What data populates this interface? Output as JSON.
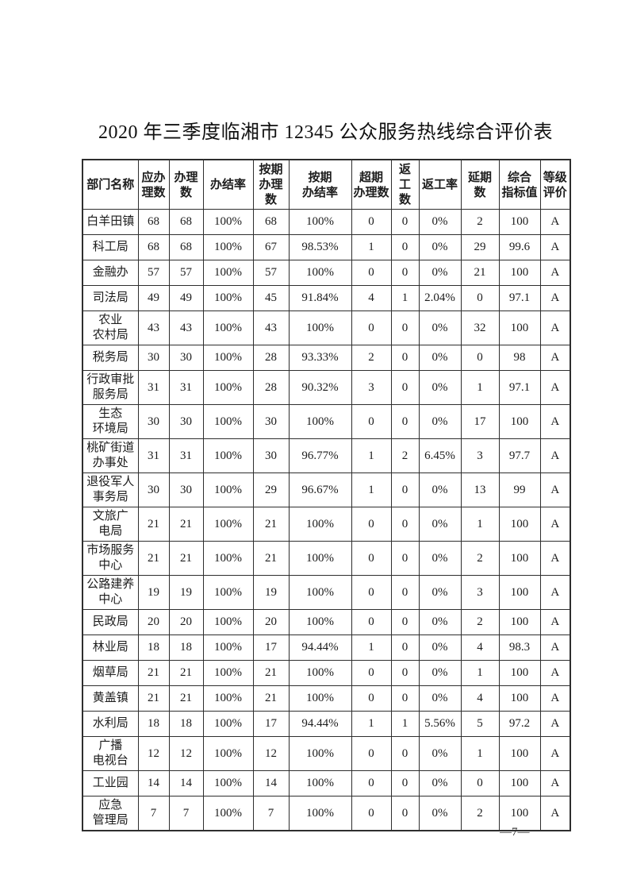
{
  "page": {
    "title": "2020 年三季度临湘市 12345 公众服务热线综合评价表",
    "page_number": "—7—"
  },
  "table": {
    "headers": [
      "部门名称",
      "应办\n理数",
      "办理数",
      "办结率",
      "按期\n办理\n数",
      "按期\n办结率",
      "超期\n办理数",
      "返\n工\n数",
      "返工率",
      "延期数",
      "综合\n指标值",
      "等级\n评价"
    ],
    "rows": [
      [
        "白羊田镇",
        "68",
        "68",
        "100%",
        "68",
        "100%",
        "0",
        "0",
        "0%",
        "2",
        "100",
        "A"
      ],
      [
        "科工局",
        "68",
        "68",
        "100%",
        "67",
        "98.53%",
        "1",
        "0",
        "0%",
        "29",
        "99.6",
        "A"
      ],
      [
        "金融办",
        "57",
        "57",
        "100%",
        "57",
        "100%",
        "0",
        "0",
        "0%",
        "21",
        "100",
        "A"
      ],
      [
        "司法局",
        "49",
        "49",
        "100%",
        "45",
        "91.84%",
        "4",
        "1",
        "2.04%",
        "0",
        "97.1",
        "A"
      ],
      [
        "农业\n农村局",
        "43",
        "43",
        "100%",
        "43",
        "100%",
        "0",
        "0",
        "0%",
        "32",
        "100",
        "A"
      ],
      [
        "税务局",
        "30",
        "30",
        "100%",
        "28",
        "93.33%",
        "2",
        "0",
        "0%",
        "0",
        "98",
        "A"
      ],
      [
        "行政审批\n服务局",
        "31",
        "31",
        "100%",
        "28",
        "90.32%",
        "3",
        "0",
        "0%",
        "1",
        "97.1",
        "A"
      ],
      [
        "生态\n环境局",
        "30",
        "30",
        "100%",
        "30",
        "100%",
        "0",
        "0",
        "0%",
        "17",
        "100",
        "A"
      ],
      [
        "桃矿街道\n办事处",
        "31",
        "31",
        "100%",
        "30",
        "96.77%",
        "1",
        "2",
        "6.45%",
        "3",
        "97.7",
        "A"
      ],
      [
        "退役军人\n事务局",
        "30",
        "30",
        "100%",
        "29",
        "96.67%",
        "1",
        "0",
        "0%",
        "13",
        "99",
        "A"
      ],
      [
        "文旅广\n电局",
        "21",
        "21",
        "100%",
        "21",
        "100%",
        "0",
        "0",
        "0%",
        "1",
        "100",
        "A"
      ],
      [
        "市场服务\n中心",
        "21",
        "21",
        "100%",
        "21",
        "100%",
        "0",
        "0",
        "0%",
        "2",
        "100",
        "A"
      ],
      [
        "公路建养\n中心",
        "19",
        "19",
        "100%",
        "19",
        "100%",
        "0",
        "0",
        "0%",
        "3",
        "100",
        "A"
      ],
      [
        "民政局",
        "20",
        "20",
        "100%",
        "20",
        "100%",
        "0",
        "0",
        "0%",
        "2",
        "100",
        "A"
      ],
      [
        "林业局",
        "18",
        "18",
        "100%",
        "17",
        "94.44%",
        "1",
        "0",
        "0%",
        "4",
        "98.3",
        "A"
      ],
      [
        "烟草局",
        "21",
        "21",
        "100%",
        "21",
        "100%",
        "0",
        "0",
        "0%",
        "1",
        "100",
        "A"
      ],
      [
        "黄盖镇",
        "21",
        "21",
        "100%",
        "21",
        "100%",
        "0",
        "0",
        "0%",
        "4",
        "100",
        "A"
      ],
      [
        "水利局",
        "18",
        "18",
        "100%",
        "17",
        "94.44%",
        "1",
        "1",
        "5.56%",
        "5",
        "97.2",
        "A"
      ],
      [
        "广播\n电视台",
        "12",
        "12",
        "100%",
        "12",
        "100%",
        "0",
        "0",
        "0%",
        "1",
        "100",
        "A"
      ],
      [
        "工业园",
        "14",
        "14",
        "100%",
        "14",
        "100%",
        "0",
        "0",
        "0%",
        "0",
        "100",
        "A"
      ],
      [
        "应急\n管理局",
        "7",
        "7",
        "100%",
        "7",
        "100%",
        "0",
        "0",
        "0%",
        "2",
        "100",
        "A"
      ]
    ]
  }
}
